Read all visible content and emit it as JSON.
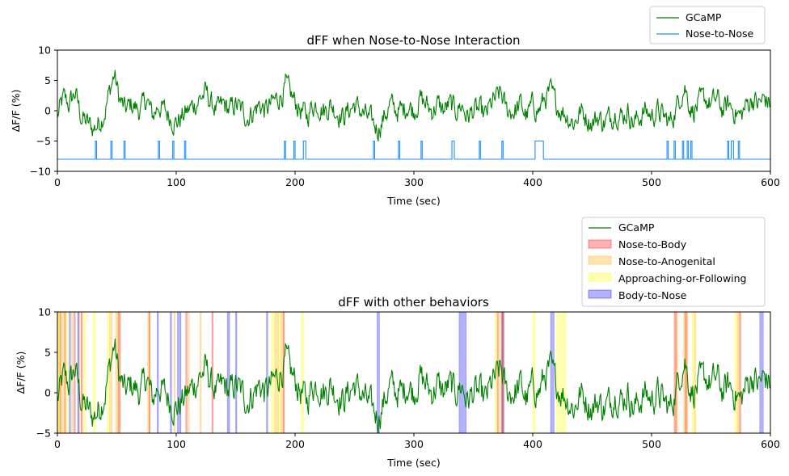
{
  "chart_data": [
    {
      "type": "line",
      "title": "dFF when Nose-to-Nose Interaction",
      "xlabel": "Time (sec)",
      "ylabel": "ΔF/F (%)",
      "xlim": [
        0,
        600
      ],
      "ylim": [
        -10,
        10
      ],
      "xticks": [
        "0",
        "100",
        "200",
        "300",
        "400",
        "500",
        "600"
      ],
      "yticks": [
        "−10",
        "−5",
        "0",
        "5",
        "10"
      ],
      "legend_position": "top-right, above plot",
      "grid": false,
      "series": [
        {
          "name": "GCaMP",
          "color": "#008000",
          "envelope": [
            [
              0,
              -1
            ],
            [
              5,
              2
            ],
            [
              10,
              1
            ],
            [
              15,
              3
            ],
            [
              20,
              -1
            ],
            [
              25,
              -2
            ],
            [
              30,
              -3
            ],
            [
              35,
              -2
            ],
            [
              40,
              0
            ],
            [
              45,
              4
            ],
            [
              48,
              6
            ],
            [
              52,
              2
            ],
            [
              57,
              0
            ],
            [
              62,
              1
            ],
            [
              70,
              0
            ],
            [
              75,
              2
            ],
            [
              80,
              -1
            ],
            [
              85,
              1
            ],
            [
              90,
              0
            ],
            [
              95,
              -1
            ],
            [
              100,
              -2
            ],
            [
              105,
              -1
            ],
            [
              110,
              0
            ],
            [
              115,
              1
            ],
            [
              120,
              2
            ],
            [
              125,
              3
            ],
            [
              130,
              1
            ],
            [
              135,
              0
            ],
            [
              140,
              1
            ],
            [
              145,
              0
            ],
            [
              150,
              1
            ],
            [
              155,
              0
            ],
            [
              160,
              -1
            ],
            [
              165,
              0
            ],
            [
              170,
              1
            ],
            [
              175,
              0
            ],
            [
              180,
              1
            ],
            [
              185,
              2
            ],
            [
              190,
              3
            ],
            [
              192,
              4
            ],
            [
              198,
              2
            ],
            [
              205,
              0
            ],
            [
              210,
              -1
            ],
            [
              215,
              1
            ],
            [
              220,
              1
            ],
            [
              225,
              0
            ],
            [
              230,
              1
            ],
            [
              235,
              0
            ],
            [
              240,
              -1
            ],
            [
              245,
              0
            ],
            [
              250,
              1
            ],
            [
              255,
              0
            ],
            [
              260,
              -1
            ],
            [
              265,
              -2
            ],
            [
              270,
              -3
            ],
            [
              275,
              -1
            ],
            [
              280,
              1
            ],
            [
              285,
              0
            ],
            [
              290,
              0
            ],
            [
              295,
              1
            ],
            [
              300,
              0
            ],
            [
              305,
              2
            ],
            [
              310,
              1
            ],
            [
              315,
              0
            ],
            [
              320,
              1
            ],
            [
              325,
              0
            ],
            [
              330,
              1
            ],
            [
              335,
              0
            ],
            [
              340,
              1
            ],
            [
              345,
              -1
            ],
            [
              350,
              0
            ],
            [
              355,
              0
            ],
            [
              360,
              -1
            ],
            [
              365,
              1
            ],
            [
              370,
              2
            ],
            [
              373,
              3
            ],
            [
              378,
              0
            ],
            [
              385,
              0
            ],
            [
              390,
              1
            ],
            [
              395,
              -1
            ],
            [
              400,
              1
            ],
            [
              405,
              0
            ],
            [
              410,
              2
            ],
            [
              415,
              3
            ],
            [
              420,
              1
            ],
            [
              425,
              0
            ],
            [
              430,
              -1
            ],
            [
              435,
              -2
            ],
            [
              440,
              0
            ],
            [
              445,
              -1
            ],
            [
              450,
              -2
            ],
            [
              455,
              -1
            ],
            [
              460,
              -2
            ],
            [
              465,
              -1
            ],
            [
              470,
              0
            ],
            [
              475,
              -1
            ],
            [
              480,
              0
            ],
            [
              485,
              -2
            ],
            [
              490,
              -1
            ],
            [
              495,
              0
            ],
            [
              500,
              -1
            ],
            [
              505,
              0
            ],
            [
              510,
              -1
            ],
            [
              515,
              -2
            ],
            [
              520,
              0
            ],
            [
              525,
              3
            ],
            [
              528,
              4
            ],
            [
              532,
              1
            ],
            [
              535,
              0
            ],
            [
              540,
              1
            ],
            [
              545,
              2
            ],
            [
              550,
              1
            ],
            [
              555,
              2
            ],
            [
              560,
              0
            ],
            [
              565,
              1
            ],
            [
              570,
              0
            ],
            [
              575,
              -1
            ],
            [
              580,
              1
            ],
            [
              585,
              2
            ],
            [
              590,
              1
            ],
            [
              595,
              2
            ],
            [
              600,
              1
            ]
          ]
        },
        {
          "name": "Nose-to-Nose",
          "color": "#1e90ff",
          "baseline": -8,
          "high": -5,
          "events": [
            [
              32,
              33
            ],
            [
              45,
              46
            ],
            [
              56,
              57
            ],
            [
              85,
              86
            ],
            [
              97,
              98
            ],
            [
              107,
              108
            ],
            [
              191,
              192
            ],
            [
              199,
              200
            ],
            [
              207,
              209
            ],
            [
              266,
              267
            ],
            [
              287,
              288
            ],
            [
              306,
              307
            ],
            [
              332,
              334
            ],
            [
              355,
              356
            ],
            [
              374,
              375
            ],
            [
              402,
              409
            ],
            [
              513,
              514
            ],
            [
              519,
              520
            ],
            [
              526,
              527
            ],
            [
              530,
              531
            ],
            [
              533,
              534
            ],
            [
              564,
              565
            ],
            [
              567,
              569
            ],
            [
              573,
              574
            ]
          ]
        }
      ]
    },
    {
      "type": "line",
      "title": "dFF with other behaviors",
      "xlabel": "Time (sec)",
      "ylabel": "ΔF/F (%)",
      "xlim": [
        0,
        600
      ],
      "ylim": [
        -5,
        10
      ],
      "xticks": [
        "0",
        "100",
        "200",
        "300",
        "400",
        "500",
        "600"
      ],
      "yticks": [
        "−5",
        "0",
        "5",
        "10"
      ],
      "legend_position": "top-right, above plot",
      "grid": false,
      "series": [
        {
          "name": "GCaMP",
          "color": "#008000"
        },
        {
          "name": "Nose-to-Body",
          "color": "#ff0000",
          "spans": [
            [
              2,
              3
            ],
            [
              6,
              7
            ],
            [
              14,
              15
            ],
            [
              20,
              21
            ],
            [
              51,
              53
            ],
            [
              77,
              78
            ],
            [
              108,
              109
            ],
            [
              130,
              131
            ],
            [
              190,
              191
            ],
            [
              370,
              371
            ],
            [
              374,
              376
            ],
            [
              519,
              521
            ],
            [
              528,
              530
            ],
            [
              574,
              575
            ]
          ]
        },
        {
          "name": "Nose-to-Anogenital",
          "color": "#ffa500",
          "spans": [
            [
              1,
              3
            ],
            [
              4,
              6
            ],
            [
              12,
              13
            ],
            [
              18,
              19
            ],
            [
              44,
              46
            ],
            [
              49,
              52
            ],
            [
              76,
              78
            ],
            [
              98,
              99
            ],
            [
              110,
              111
            ],
            [
              120,
              121
            ],
            [
              183,
              186
            ],
            [
              188,
              190
            ],
            [
              372,
              375
            ],
            [
              520,
              522
            ],
            [
              527,
              530
            ],
            [
              536,
              537
            ],
            [
              572,
              574
            ]
          ]
        },
        {
          "name": "Approaching-or-Following",
          "color": "#ffff00",
          "spans": [
            [
              0,
              2
            ],
            [
              7,
              9
            ],
            [
              22,
              24
            ],
            [
              30,
              32
            ],
            [
              42,
              44
            ],
            [
              180,
              183
            ],
            [
              186,
              188
            ],
            [
              205,
              207
            ],
            [
              368,
              370
            ],
            [
              400,
              402
            ],
            [
              420,
              428
            ],
            [
              534,
              536
            ],
            [
              570,
              572
            ]
          ]
        },
        {
          "name": "Body-to-Nose",
          "color": "#0000ff",
          "spans": [
            [
              10,
              11
            ],
            [
              17,
              18
            ],
            [
              84,
              85
            ],
            [
              95,
              96
            ],
            [
              101,
              104
            ],
            [
              143,
              145
            ],
            [
              150,
              151
            ],
            [
              176,
              177
            ],
            [
              269,
              271
            ],
            [
              338,
              344
            ],
            [
              374,
              375
            ],
            [
              415,
              418
            ],
            [
              591,
              594
            ]
          ]
        }
      ]
    }
  ]
}
